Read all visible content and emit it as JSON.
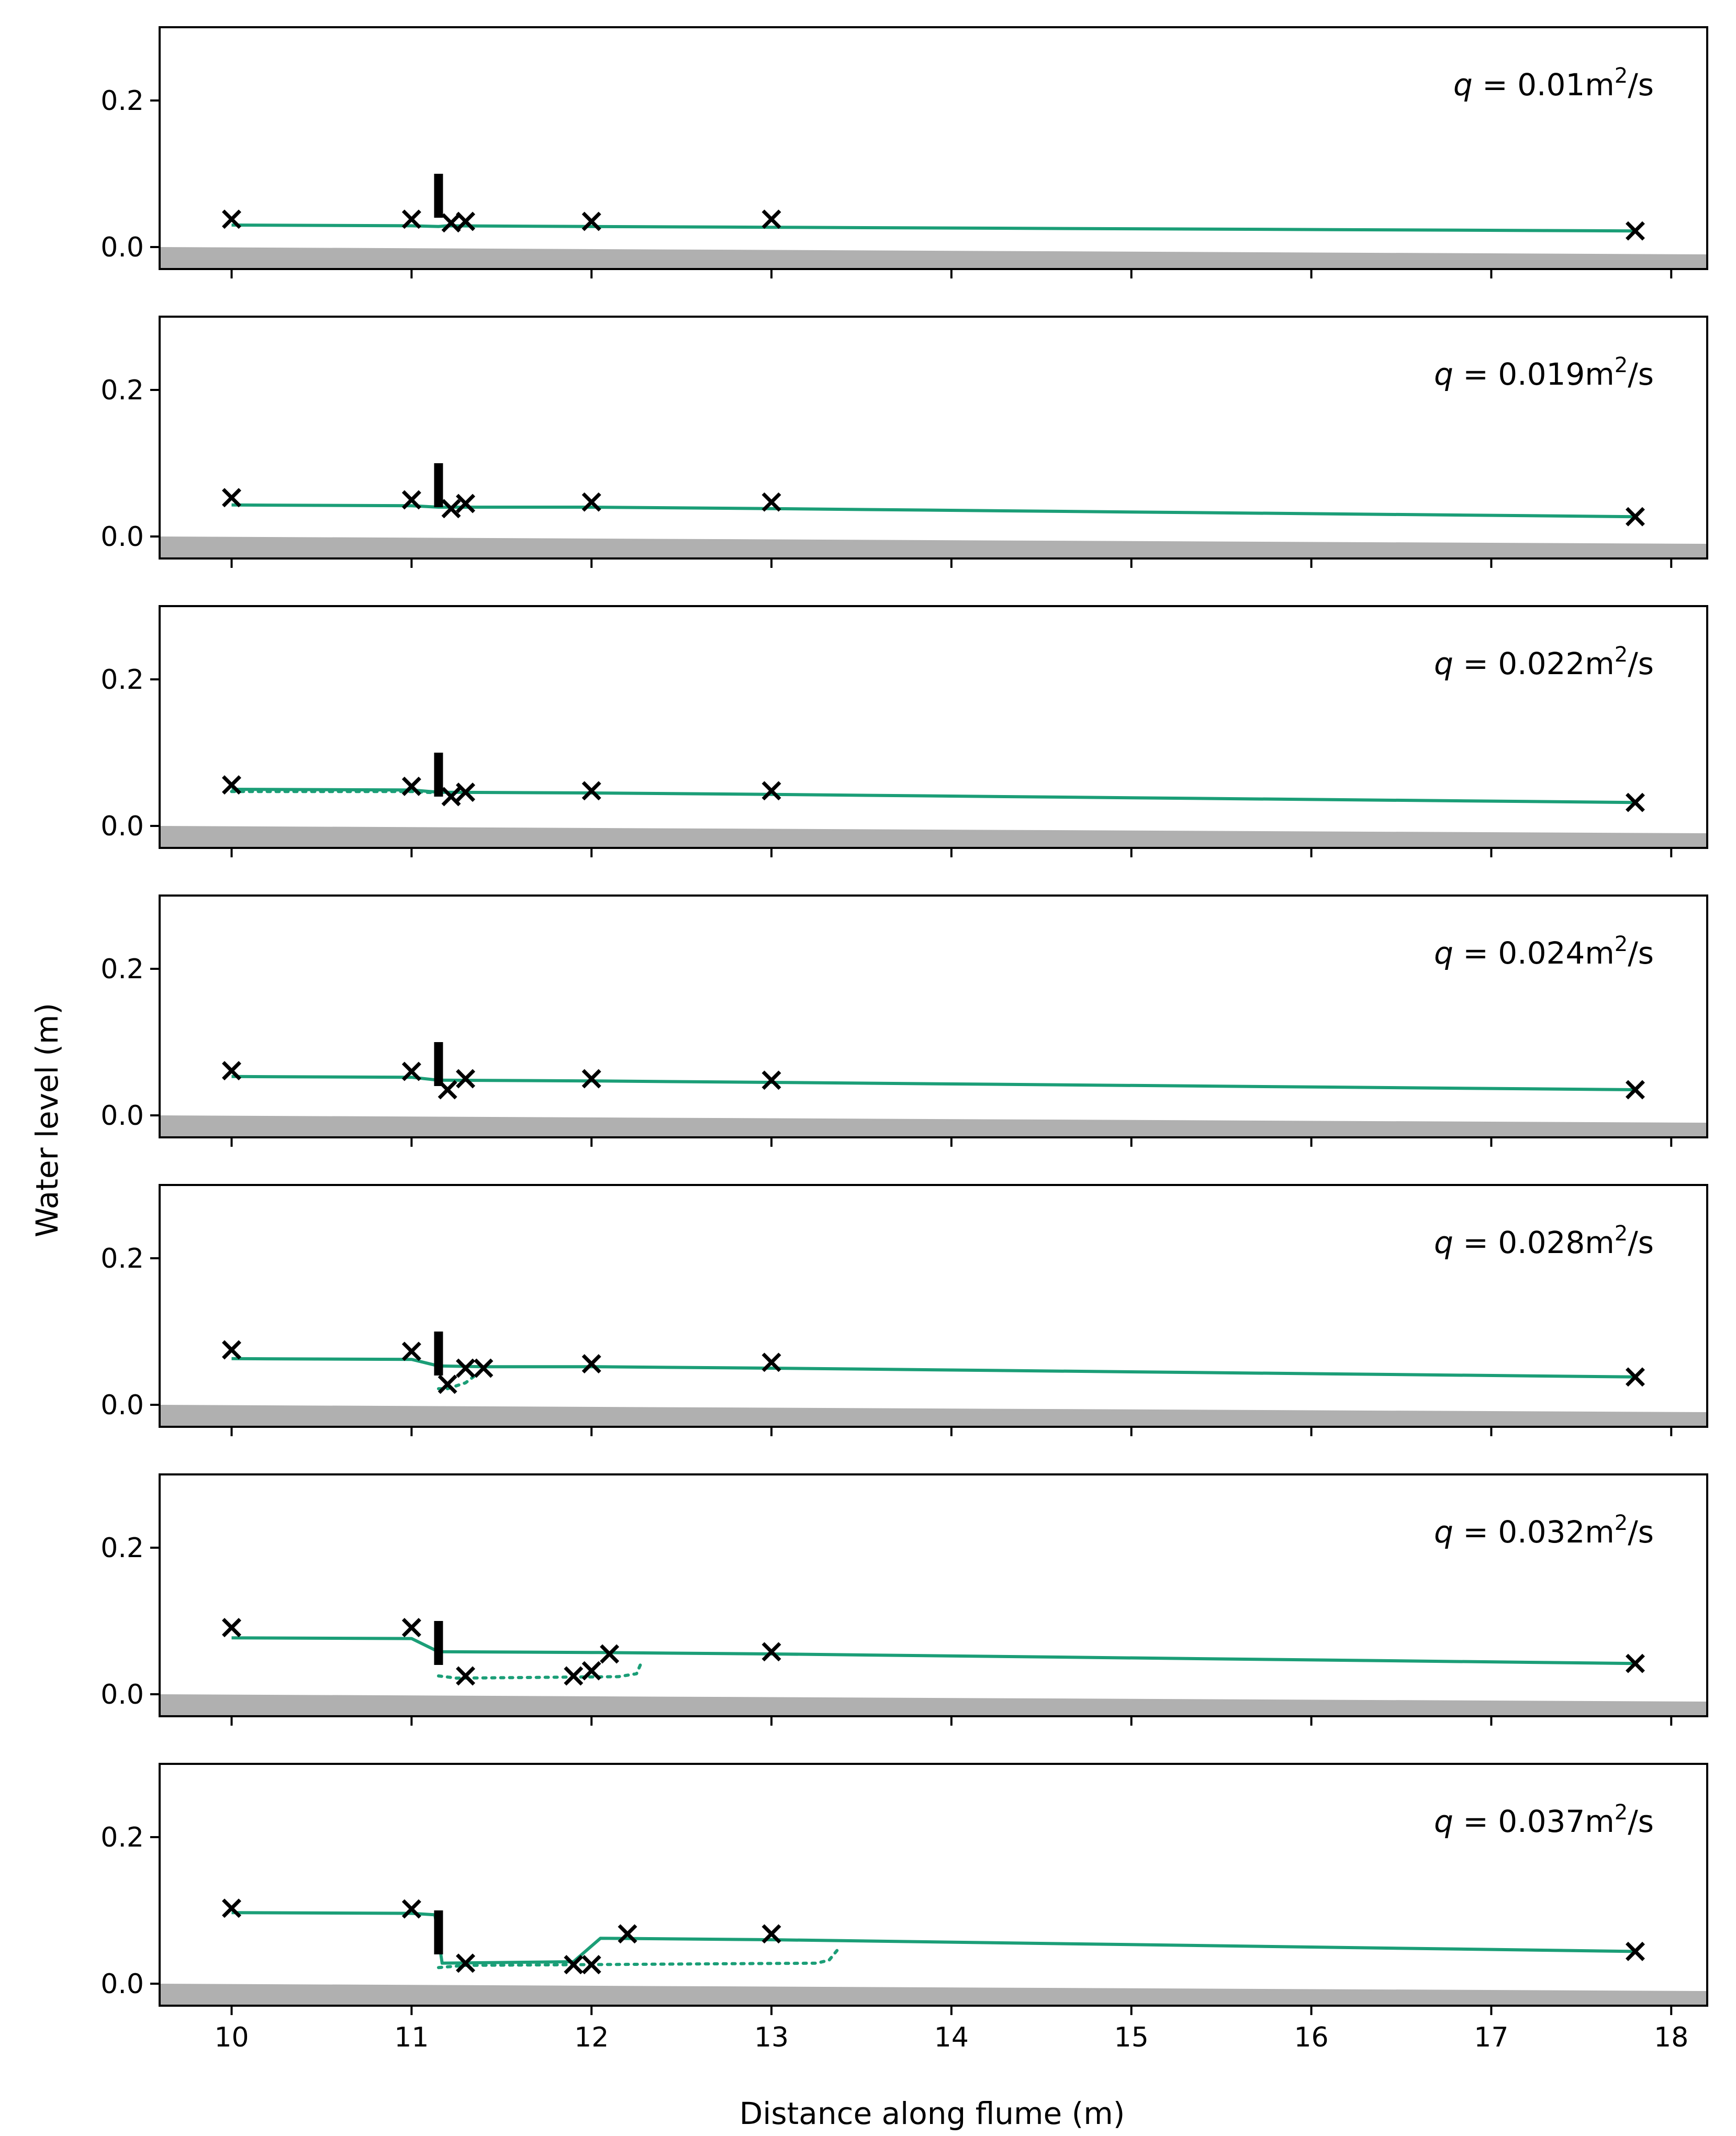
{
  "figure": {
    "xlabel": "Distance along flume (m)",
    "ylabel": "Water level (m)",
    "colors": {
      "water": "#1b9e77",
      "bed": "#b0b0b0",
      "gate": "#000000",
      "marker": "#000000"
    }
  },
  "chart_data": {
    "type": "line",
    "xlabel": "Distance along flume (m)",
    "ylabel": "Water level (m)",
    "xlim": [
      9.6,
      18.2
    ],
    "ylim": [
      -0.03,
      0.3
    ],
    "x_ticks": [
      10,
      11,
      12,
      13,
      14,
      15,
      16,
      17,
      18
    ],
    "y_ticks": [
      0.0,
      0.2
    ],
    "y_tick_labels": [
      "0.0",
      "0.2"
    ],
    "grid": false,
    "bed": {
      "x": [
        9.6,
        18.2
      ],
      "y": [
        0.0,
        -0.01
      ]
    },
    "gate": {
      "x": 11.15,
      "y_bottom": 0.04,
      "y_top": 0.1
    },
    "panels": [
      {
        "annotation": {
          "symbol": "q",
          "eq": " = 0.01m",
          "sup": "2",
          "unit": "/s"
        },
        "series": [
          {
            "style": "solid",
            "x": [
              10,
              11.0,
              11.15,
              11.2,
              12,
              13,
              17.8
            ],
            "y": [
              0.03,
              0.029,
              0.028,
              0.029,
              0.028,
              0.027,
              0.022
            ]
          }
        ],
        "markers": {
          "x": [
            10,
            11,
            11.22,
            11.3,
            12,
            13,
            17.8
          ],
          "y": [
            0.038,
            0.038,
            0.033,
            0.035,
            0.035,
            0.038,
            0.022
          ]
        }
      },
      {
        "annotation": {
          "symbol": "q",
          "eq": " = 0.019m",
          "sup": "2",
          "unit": "/s"
        },
        "series": [
          {
            "style": "solid",
            "x": [
              10,
              11.0,
              11.15,
              12,
              13,
              17.8
            ],
            "y": [
              0.043,
              0.042,
              0.04,
              0.04,
              0.038,
              0.027
            ]
          }
        ],
        "markers": {
          "x": [
            10,
            11,
            11.22,
            11.3,
            12,
            13,
            17.8
          ],
          "y": [
            0.053,
            0.05,
            0.038,
            0.045,
            0.047,
            0.047,
            0.027
          ]
        }
      },
      {
        "annotation": {
          "symbol": "q",
          "eq": " = 0.022m",
          "sup": "2",
          "unit": "/s"
        },
        "series": [
          {
            "style": "solid",
            "x": [
              10,
              11.0,
              11.15,
              12,
              13,
              17.8
            ],
            "y": [
              0.05,
              0.049,
              0.046,
              0.045,
              0.043,
              0.032
            ]
          },
          {
            "style": "dotted",
            "x": [
              10,
              11.0,
              11.15
            ],
            "y": [
              0.047,
              0.047,
              0.045
            ]
          }
        ],
        "markers": {
          "x": [
            10,
            11,
            11.22,
            11.3,
            12,
            13,
            17.8
          ],
          "y": [
            0.056,
            0.054,
            0.04,
            0.046,
            0.048,
            0.048,
            0.032
          ]
        }
      },
      {
        "annotation": {
          "symbol": "q",
          "eq": " = 0.024m",
          "sup": "2",
          "unit": "/s"
        },
        "series": [
          {
            "style": "solid",
            "x": [
              10,
              11.0,
              11.15,
              12,
              13,
              17.8
            ],
            "y": [
              0.053,
              0.052,
              0.048,
              0.047,
              0.045,
              0.035
            ]
          }
        ],
        "markers": {
          "x": [
            10,
            11,
            11.2,
            11.3,
            12,
            13,
            17.8
          ],
          "y": [
            0.061,
            0.06,
            0.035,
            0.05,
            0.05,
            0.048,
            0.035
          ]
        }
      },
      {
        "annotation": {
          "symbol": "q",
          "eq": " = 0.028m",
          "sup": "2",
          "unit": "/s"
        },
        "series": [
          {
            "style": "solid",
            "x": [
              10,
              11.0,
              11.15,
              11.4,
              12,
              13,
              17.8
            ],
            "y": [
              0.063,
              0.062,
              0.053,
              0.052,
              0.052,
              0.05,
              0.038
            ]
          },
          {
            "style": "dotted",
            "x": [
              11.15,
              11.2,
              11.3,
              11.38
            ],
            "y": [
              0.022,
              0.022,
              0.03,
              0.045
            ]
          }
        ],
        "markers": {
          "x": [
            10,
            11,
            11.2,
            11.3,
            11.4,
            12,
            13,
            17.8
          ],
          "y": [
            0.075,
            0.073,
            0.028,
            0.05,
            0.05,
            0.056,
            0.058,
            0.038
          ]
        }
      },
      {
        "annotation": {
          "symbol": "q",
          "eq": " = 0.032m",
          "sup": "2",
          "unit": "/s"
        },
        "series": [
          {
            "style": "solid",
            "x": [
              10,
              11.0,
              11.15,
              12,
              13,
              17.8
            ],
            "y": [
              0.077,
              0.076,
              0.058,
              0.057,
              0.055,
              0.042
            ]
          },
          {
            "style": "dotted",
            "x": [
              11.15,
              11.25,
              12.15,
              12.25,
              12.28
            ],
            "y": [
              0.025,
              0.022,
              0.024,
              0.028,
              0.045
            ]
          }
        ],
        "markers": {
          "x": [
            10,
            11,
            11.3,
            11.9,
            12.0,
            12.1,
            13,
            17.8
          ],
          "y": [
            0.091,
            0.091,
            0.025,
            0.025,
            0.032,
            0.055,
            0.058,
            0.042
          ]
        }
      },
      {
        "annotation": {
          "symbol": "q",
          "eq": " = 0.037m",
          "sup": "2",
          "unit": "/s"
        },
        "series": [
          {
            "style": "solid",
            "x": [
              10,
              11.0,
              11.13,
              11.17,
              11.9,
              11.97,
              12.05,
              13,
              17.8
            ],
            "y": [
              0.097,
              0.096,
              0.094,
              0.028,
              0.03,
              0.045,
              0.062,
              0.06,
              0.044
            ]
          },
          {
            "style": "dotted",
            "x": [
              11.15,
              11.3,
              13.25,
              13.32,
              13.38
            ],
            "y": [
              0.022,
              0.025,
              0.028,
              0.032,
              0.05
            ]
          }
        ],
        "markers": {
          "x": [
            10,
            11,
            11.3,
            11.9,
            12.0,
            12.2,
            13,
            17.8
          ],
          "y": [
            0.103,
            0.102,
            0.028,
            0.026,
            0.026,
            0.068,
            0.068,
            0.044
          ]
        }
      }
    ]
  }
}
